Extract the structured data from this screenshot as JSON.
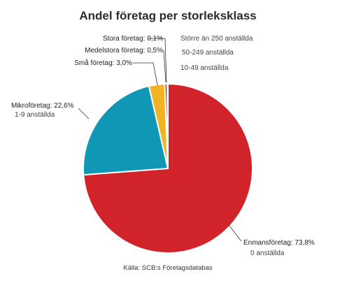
{
  "title": "Andel företag per storleksklass",
  "source": "Källa: SCB:s Företagsdatabas",
  "chart_data": {
    "type": "pie",
    "title": "Andel företag per storleksklass",
    "slices": [
      {
        "label": "Enmansföretag: 73,8%",
        "sublabel": "0 anställda",
        "value": 73.8,
        "color": "#d1232a"
      },
      {
        "label": "Mikroföretag: 22,6%",
        "sublabel": "1-9 anställda",
        "value": 22.6,
        "color": "#0f97b5"
      },
      {
        "label": "Små företag: 3,0%",
        "sublabel": "10-49 anställda",
        "value": 3.0,
        "color": "#f0b323"
      },
      {
        "label": "Medelstora företag: 0,5%",
        "sublabel": "50-249 anställda",
        "value": 0.5,
        "color": "#d1232a"
      },
      {
        "label": "Stora företag: 0,1%",
        "sublabel": "Större än 250 anställda",
        "value": 0.1,
        "color": "#1b1b1b"
      }
    ],
    "start": "12 o'clock",
    "direction": "clockwise"
  }
}
